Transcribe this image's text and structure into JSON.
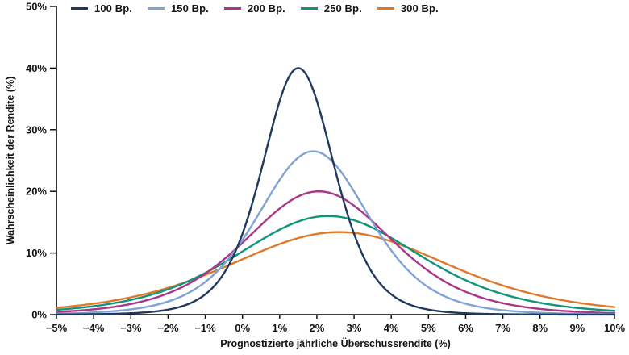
{
  "chart_data": {
    "type": "line",
    "xlabel": "Prognostizierte jährliche Überschussrendite (%)",
    "ylabel": "Wahrscheinlichkeit der Rendite (%)",
    "xlim": [
      -5,
      10
    ],
    "ylim": [
      0,
      50
    ],
    "grid": false,
    "legend_position": "top",
    "axis_color": "#000000",
    "x_ticks": [
      "−5%",
      "−4%",
      "−3%",
      "−2%",
      "−1%",
      "0%",
      "1%",
      "2%",
      "3%",
      "4%",
      "5%",
      "6%",
      "7%",
      "8%",
      "9%",
      "10%"
    ],
    "y_ticks": [
      "0%",
      "10%",
      "20%",
      "30%",
      "40%",
      "50%"
    ],
    "x_values": [
      -5,
      -4,
      -3,
      -2,
      -1,
      0,
      1,
      2,
      3,
      4,
      5,
      6,
      7,
      8,
      9,
      10
    ],
    "tail_nu": 6,
    "series": [
      {
        "name": "100 Bp.",
        "color": "#21395E",
        "mean": 1.5,
        "sigma": 1.0,
        "peak": 40.0,
        "values": [
          0.0,
          0.1,
          0.2,
          0.8,
          3.3,
          13.1,
          34.7,
          34.7,
          13.1,
          3.3,
          0.8,
          0.2,
          0.1,
          0.0,
          0.0,
          0.0
        ]
      },
      {
        "name": "150 Bp.",
        "color": "#7FA3D4",
        "mean": 1.9,
        "sigma": 1.55,
        "peak": 26.5,
        "values": [
          0.2,
          0.4,
          0.9,
          2.1,
          5.3,
          12.1,
          21.9,
          26.4,
          20.0,
          10.4,
          4.4,
          1.8,
          0.7,
          0.3,
          0.1,
          0.1
        ]
      },
      {
        "name": "200 Bp.",
        "color": "#A93687",
        "mean": 2.05,
        "sigma": 2.05,
        "peak": 20.0,
        "values": [
          0.4,
          0.9,
          1.7,
          3.5,
          6.7,
          11.7,
          17.2,
          20.0,
          17.7,
          12.2,
          7.1,
          3.7,
          1.9,
          0.9,
          0.5,
          0.2
        ]
      },
      {
        "name": "250 Bp.",
        "color": "#11947B",
        "mean": 2.3,
        "sigma": 2.55,
        "peak": 16.0,
        "values": [
          0.8,
          1.4,
          2.4,
          4.1,
          6.8,
          10.2,
          13.8,
          15.9,
          15.3,
          12.5,
          8.8,
          5.6,
          3.3,
          1.9,
          1.1,
          0.6
        ]
      },
      {
        "name": "300 Bp.",
        "color": "#E0782A",
        "mean": 2.6,
        "sigma": 3.05,
        "peak": 13.4,
        "values": [
          1.1,
          1.8,
          2.8,
          4.4,
          6.5,
          9.0,
          11.5,
          13.1,
          13.3,
          11.9,
          9.5,
          6.9,
          4.7,
          3.1,
          2.0,
          1.2
        ]
      }
    ]
  }
}
